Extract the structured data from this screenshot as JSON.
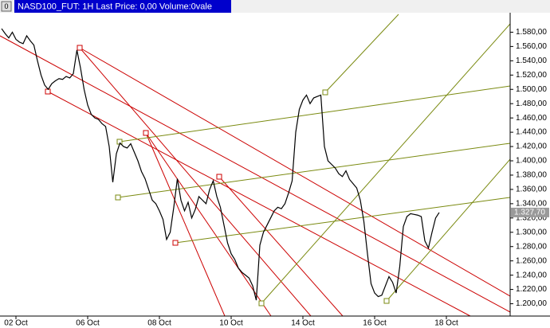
{
  "chart_data": {
    "type": "line",
    "menu_icon": "0",
    "title": "NASD100_FUT: 1H Last Price: 0,00 Volume:0vale",
    "categories": [
      null,
      null,
      null,
      null,
      "02 Oct",
      null,
      null,
      null,
      null,
      null,
      null,
      null,
      null,
      null,
      null,
      null,
      null,
      null,
      null,
      null,
      null,
      null,
      null,
      null,
      "06 Oct",
      null,
      null,
      null,
      null,
      null,
      null,
      null,
      null,
      null,
      null,
      null,
      null,
      null,
      null,
      null,
      null,
      null,
      null,
      null,
      "08 Oct",
      null,
      null,
      null,
      null,
      null,
      null,
      null,
      null,
      null,
      null,
      null,
      null,
      null,
      null,
      null,
      null,
      null,
      null,
      null,
      "10 Oct",
      null,
      null,
      null,
      null,
      null,
      null,
      null,
      null,
      null,
      null,
      null,
      null,
      null,
      null,
      null,
      null,
      null,
      null,
      null,
      "14 Oct",
      null,
      null,
      null,
      null,
      null,
      null,
      null,
      null,
      null,
      null,
      null,
      null,
      null,
      null,
      null,
      null,
      null,
      null,
      null,
      "16 Oct",
      null,
      null,
      null,
      null,
      null,
      null,
      null,
      null,
      null,
      null,
      null,
      null,
      null,
      null,
      null,
      null,
      null,
      null,
      null,
      "18 Oct",
      null,
      null,
      null,
      null,
      null,
      null,
      null,
      null,
      null,
      null,
      null,
      null,
      null,
      null,
      null,
      null,
      null
    ],
    "series": [
      {
        "color": "#000000",
        "values": [
          1585,
          1578,
          1572,
          1580,
          1570,
          1566,
          1564,
          1575,
          1568,
          1562,
          1540,
          1520,
          1506,
          1500,
          1508,
          1512,
          1515,
          1514,
          1518,
          1516,
          1522,
          1555,
          1530,
          1500,
          1478,
          1465,
          1460,
          1458,
          1452,
          1448,
          1420,
          1370,
          1410,
          1425,
          1420,
          1418,
          1424,
          1412,
          1400,
          1385,
          1375,
          1360,
          1345,
          1340,
          1330,
          1318,
          1290,
          1300,
          1335,
          1375,
          1345,
          1330,
          1342,
          1320,
          1332,
          1350,
          1345,
          1340,
          1360,
          1372,
          1350,
          1335,
          1310,
          1285,
          1270,
          1262,
          1250,
          1244,
          1240,
          1236,
          1225,
          1205,
          1282,
          1300,
          1310,
          1320,
          1330,
          1335,
          1333,
          1340,
          1355,
          1372,
          1440,
          1472,
          1485,
          1492,
          1480,
          1488,
          1490,
          1492,
          1420,
          1400,
          1395,
          1390,
          1382,
          1378,
          1386,
          1374,
          1368,
          1362,
          1345,
          1315,
          1270,
          1228,
          1215,
          1210,
          1212,
          1225,
          1238,
          1230,
          1215,
          1252,
          1308,
          1322,
          1326,
          1325,
          1324,
          1322,
          1288,
          1278,
          1300,
          1320,
          1327.7,
          null,
          null,
          null,
          null,
          null,
          null,
          null,
          null,
          null,
          null,
          null,
          null,
          null,
          null,
          null,
          null,
          null,
          null,
          null
        ]
      }
    ],
    "ylim": [
      1185,
      1605
    ],
    "yticks": [
      {
        "value": 1200,
        "label": "1.200,00"
      },
      {
        "value": 1220,
        "label": "1.220,00"
      },
      {
        "value": 1240,
        "label": "1.240,00"
      },
      {
        "value": 1260,
        "label": "1.260,00"
      },
      {
        "value": 1280,
        "label": "1.280,00"
      },
      {
        "value": 1300,
        "label": "1.300,00"
      },
      {
        "value": 1320,
        "label": "1.320,00"
      },
      {
        "value": 1340,
        "label": "1.340,00"
      },
      {
        "value": 1360,
        "label": "1.360,00"
      },
      {
        "value": 1380,
        "label": "1.380,00"
      },
      {
        "value": 1400,
        "label": "1.400,00"
      },
      {
        "value": 1420,
        "label": "1.420,00"
      },
      {
        "value": 1440,
        "label": "1.440,00"
      },
      {
        "value": 1460,
        "label": "1.460,00"
      },
      {
        "value": 1480,
        "label": "1.480,00"
      },
      {
        "value": 1500,
        "label": "1.500,00"
      },
      {
        "value": 1520,
        "label": "1.520,00"
      },
      {
        "value": 1540,
        "label": "1.540,00"
      },
      {
        "value": 1560,
        "label": "1.560,00"
      },
      {
        "value": 1580,
        "label": "1.580,00"
      }
    ],
    "last_price": {
      "value": 1327.7,
      "label": "1.327,70"
    }
  }
}
